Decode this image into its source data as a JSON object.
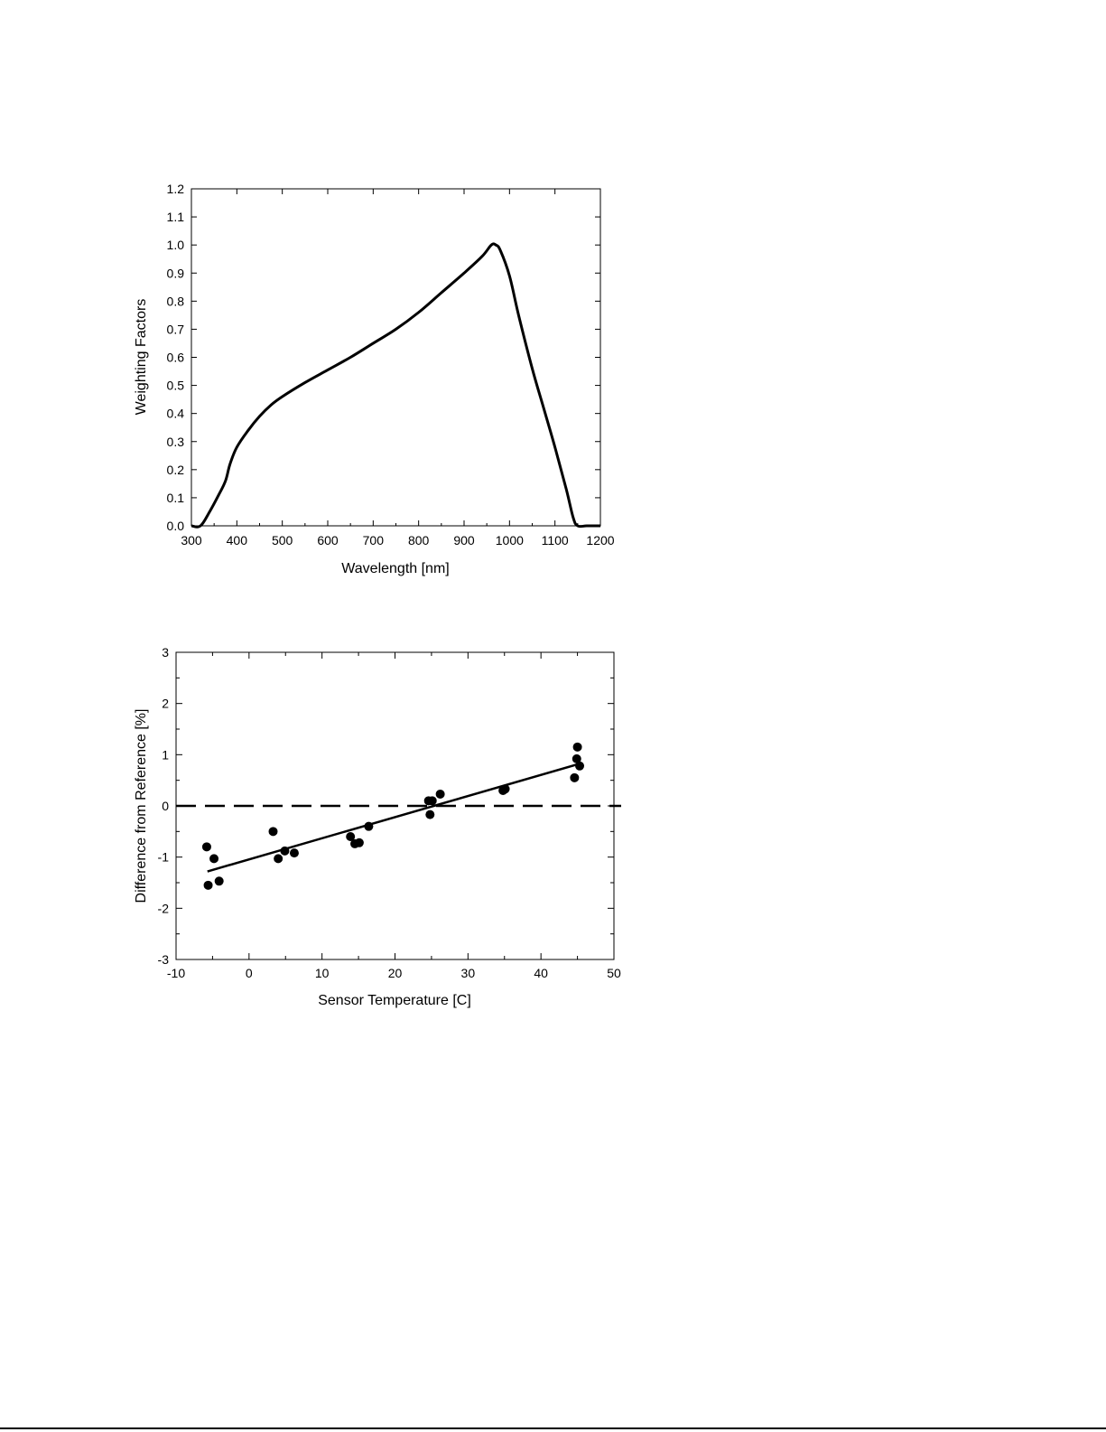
{
  "chart_data": [
    {
      "type": "line",
      "xlabel": "Wavelength [nm]",
      "ylabel": "Weighting Factors",
      "xlim": [
        300,
        1200
      ],
      "ylim": [
        0,
        1.2
      ],
      "xticks": [
        "300",
        "400",
        "500",
        "600",
        "700",
        "800",
        "900",
        "1000",
        "1100",
        "1200"
      ],
      "yticks": [
        "0.0",
        "0.1",
        "0.2",
        "0.3",
        "0.4",
        "0.5",
        "0.6",
        "0.7",
        "0.8",
        "0.9",
        "1.0",
        "1.1",
        "1.2"
      ],
      "grid": false,
      "series": [
        {
          "x": [
            300,
            320,
            340,
            360,
            375,
            385,
            400,
            425,
            450,
            475,
            500,
            550,
            600,
            650,
            700,
            750,
            800,
            850,
            900,
            940,
            960,
            970,
            980,
            1000,
            1020,
            1050,
            1075,
            1100,
            1125,
            1140,
            1150,
            1170,
            1200
          ],
          "y": [
            0.0,
            0.0,
            0.05,
            0.11,
            0.16,
            0.22,
            0.28,
            0.34,
            0.39,
            0.43,
            0.46,
            0.51,
            0.555,
            0.6,
            0.65,
            0.7,
            0.76,
            0.83,
            0.9,
            0.96,
            1.0,
            1.0,
            0.98,
            0.89,
            0.75,
            0.56,
            0.42,
            0.28,
            0.13,
            0.03,
            0.0,
            0.0,
            0.0
          ]
        }
      ]
    },
    {
      "type": "scatter",
      "xlabel": "Sensor Temperature [C]",
      "ylabel": "Difference from Reference [%]",
      "xlim": [
        -10,
        50
      ],
      "ylim": [
        -3,
        3
      ],
      "xticks": [
        "-10",
        "0",
        "10",
        "20",
        "30",
        "40",
        "50"
      ],
      "yticks": [
        "-3",
        "-2",
        "-1",
        "0",
        "1",
        "2",
        "3"
      ],
      "grid": false,
      "points": [
        {
          "x": -5.8,
          "y": -0.8
        },
        {
          "x": -5.6,
          "y": -1.55
        },
        {
          "x": -4.8,
          "y": -1.03
        },
        {
          "x": -4.1,
          "y": -1.47
        },
        {
          "x": 3.3,
          "y": -0.5
        },
        {
          "x": 4.0,
          "y": -1.03
        },
        {
          "x": 4.9,
          "y": -0.88
        },
        {
          "x": 6.2,
          "y": -0.92
        },
        {
          "x": 13.9,
          "y": -0.6
        },
        {
          "x": 14.5,
          "y": -0.74
        },
        {
          "x": 15.1,
          "y": -0.72
        },
        {
          "x": 16.4,
          "y": -0.4
        },
        {
          "x": 24.6,
          "y": 0.1
        },
        {
          "x": 24.8,
          "y": -0.17
        },
        {
          "x": 25.1,
          "y": 0.1
        },
        {
          "x": 26.2,
          "y": 0.23
        },
        {
          "x": 34.8,
          "y": 0.3
        },
        {
          "x": 35.1,
          "y": 0.33
        },
        {
          "x": 44.6,
          "y": 0.55
        },
        {
          "x": 44.9,
          "y": 0.92
        },
        {
          "x": 45.0,
          "y": 1.15
        },
        {
          "x": 45.3,
          "y": 0.78
        }
      ],
      "fit_line": {
        "x": [
          -5.7,
          45.2
        ],
        "y": [
          -1.28,
          0.82
        ]
      },
      "reference_line": {
        "y": 0,
        "style": "dashed"
      }
    }
  ]
}
